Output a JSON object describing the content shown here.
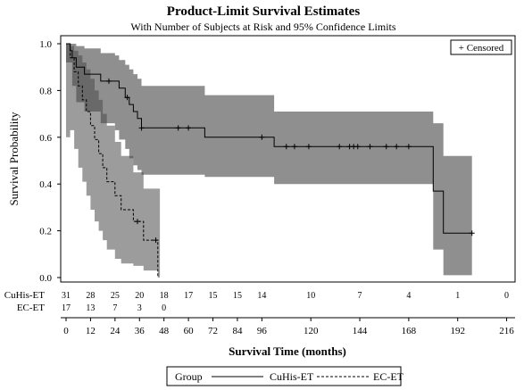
{
  "chart_data": {
    "type": "line",
    "title": "Product-Limit Survival Estimates",
    "subtitle": "With Number of Subjects at Risk and 95% Confidence Limits",
    "xlabel": "Survival Time (months)",
    "ylabel": "Survival Probability",
    "xlim": [
      0,
      216
    ],
    "ylim": [
      0,
      1
    ],
    "x_ticks": [
      "0",
      "12",
      "24",
      "36",
      "48",
      "60",
      "72",
      "84",
      "96",
      "120",
      "144",
      "168",
      "192",
      "216"
    ],
    "y_ticks": [
      "0.0",
      "0.2",
      "0.4",
      "0.6",
      "0.8",
      "1.0"
    ],
    "censored_label": "+ Censored",
    "legend": {
      "title": "Group",
      "entries": [
        "CuHis-ET",
        "EC-ET"
      ],
      "placement": "bottom"
    },
    "series": [
      {
        "name": "CuHis-ET",
        "line_style": "solid",
        "steps": [
          [
            0,
            1.0
          ],
          [
            2,
            0.97
          ],
          [
            3,
            0.94
          ],
          [
            5,
            0.9
          ],
          [
            9,
            0.87
          ],
          [
            17,
            0.84
          ],
          [
            24,
            0.84
          ],
          [
            26,
            0.81
          ],
          [
            29,
            0.77
          ],
          [
            31,
            0.74
          ],
          [
            33,
            0.71
          ],
          [
            35,
            0.68
          ],
          [
            37,
            0.64
          ],
          [
            68,
            0.6
          ],
          [
            102,
            0.56
          ],
          [
            180,
            0.37
          ],
          [
            185,
            0.19
          ],
          [
            199,
            0.19
          ]
        ],
        "band": [
          [
            0,
            0.92,
            1.0
          ],
          [
            3,
            0.82,
            1.0
          ],
          [
            5,
            0.75,
            0.99
          ],
          [
            9,
            0.71,
            0.98
          ],
          [
            17,
            0.66,
            0.96
          ],
          [
            24,
            0.63,
            0.95
          ],
          [
            26,
            0.59,
            0.93
          ],
          [
            29,
            0.55,
            0.91
          ],
          [
            31,
            0.51,
            0.89
          ],
          [
            33,
            0.48,
            0.87
          ],
          [
            35,
            0.46,
            0.85
          ],
          [
            37,
            0.44,
            0.82
          ],
          [
            68,
            0.43,
            0.78
          ],
          [
            102,
            0.4,
            0.71
          ],
          [
            180,
            0.12,
            0.66
          ],
          [
            185,
            0.01,
            0.52
          ],
          [
            199,
            0.01,
            0.52
          ]
        ],
        "censored": [
          [
            21,
            0.84
          ],
          [
            30,
            0.77
          ],
          [
            37,
            0.64
          ],
          [
            55,
            0.64
          ],
          [
            60,
            0.64
          ],
          [
            96,
            0.6
          ],
          [
            108,
            0.56
          ],
          [
            112,
            0.56
          ],
          [
            119,
            0.56
          ],
          [
            134,
            0.56
          ],
          [
            139,
            0.56
          ],
          [
            141,
            0.56
          ],
          [
            143,
            0.56
          ],
          [
            149,
            0.56
          ],
          [
            157,
            0.56
          ],
          [
            162,
            0.56
          ],
          [
            168,
            0.56
          ],
          [
            199,
            0.19
          ]
        ]
      },
      {
        "name": "EC-ET",
        "line_style": "dashed",
        "steps": [
          [
            0,
            1.0
          ],
          [
            2,
            0.94
          ],
          [
            4,
            0.88
          ],
          [
            6,
            0.82
          ],
          [
            8,
            0.76
          ],
          [
            10,
            0.71
          ],
          [
            12,
            0.65
          ],
          [
            14,
            0.59
          ],
          [
            16,
            0.53
          ],
          [
            18,
            0.47
          ],
          [
            20,
            0.41
          ],
          [
            24,
            0.35
          ],
          [
            27,
            0.29
          ],
          [
            33,
            0.24
          ],
          [
            38,
            0.16
          ],
          [
            45,
            0.0
          ]
        ],
        "band": [
          [
            0,
            0.6,
            1.0
          ],
          [
            2,
            0.63,
            0.99
          ],
          [
            4,
            0.55,
            0.97
          ],
          [
            6,
            0.47,
            0.95
          ],
          [
            8,
            0.41,
            0.92
          ],
          [
            10,
            0.35,
            0.89
          ],
          [
            12,
            0.29,
            0.85
          ],
          [
            14,
            0.24,
            0.8
          ],
          [
            16,
            0.2,
            0.76
          ],
          [
            18,
            0.16,
            0.7
          ],
          [
            20,
            0.12,
            0.65
          ],
          [
            24,
            0.08,
            0.58
          ],
          [
            27,
            0.06,
            0.52
          ],
          [
            33,
            0.05,
            0.45
          ],
          [
            38,
            0.03,
            0.38
          ],
          [
            45,
            0.0,
            0.38
          ],
          [
            46,
            0.0,
            0.38
          ]
        ],
        "censored": [
          [
            35,
            0.24
          ],
          [
            44,
            0.16
          ]
        ]
      }
    ],
    "at_risk": {
      "x_values": [
        0,
        12,
        24,
        36,
        48,
        60,
        72,
        84,
        96,
        120,
        144,
        168,
        192,
        216
      ],
      "rows": [
        {
          "group": "CuHis-ET",
          "values": [
            "31",
            "28",
            "25",
            "20",
            "18",
            "17",
            "15",
            "15",
            "14",
            "10",
            "7",
            "4",
            "1",
            "0"
          ]
        },
        {
          "group": "EC-ET",
          "values": [
            "17",
            "13",
            "7",
            "3",
            "0"
          ]
        }
      ]
    }
  }
}
